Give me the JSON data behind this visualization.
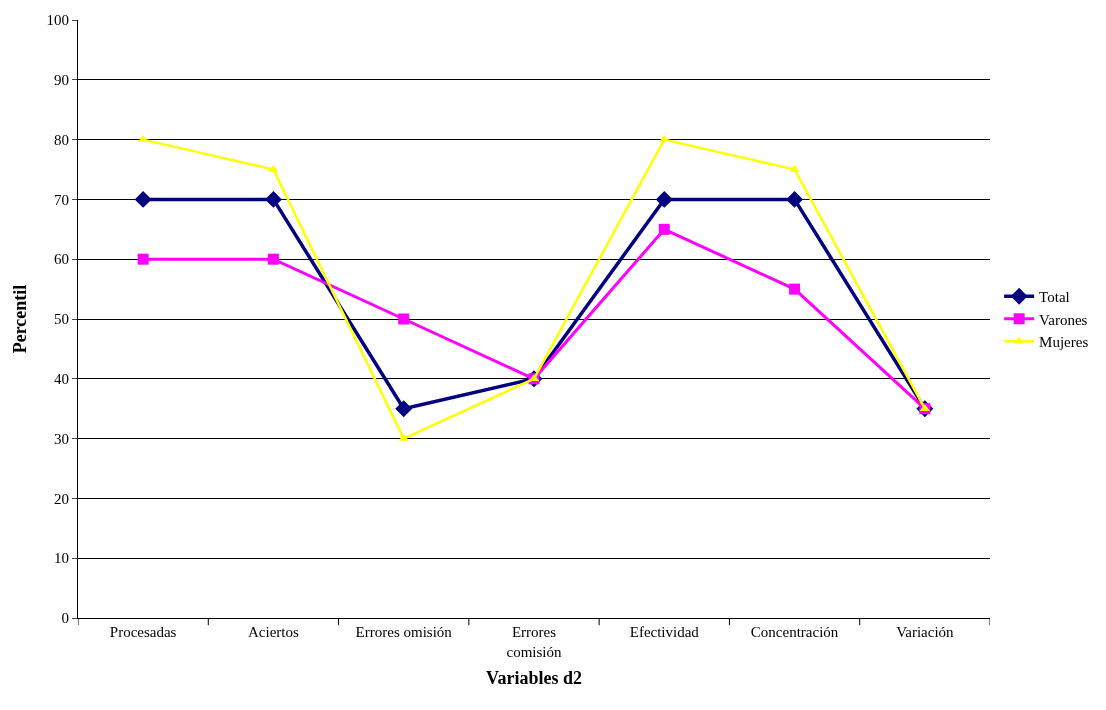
{
  "chart_data": {
    "type": "line",
    "xlabel": "Variables d2",
    "ylabel": "Percentil",
    "categories": [
      "Procesadas",
      "Aciertos",
      "Errores omisión",
      "Errores\ncomisión",
      "Efectividad",
      "Concentración",
      "Variación"
    ],
    "series": [
      {
        "name": "Total",
        "color": "#000080",
        "marker": "diamond",
        "values": [
          70,
          70,
          35,
          40,
          70,
          70,
          35
        ]
      },
      {
        "name": "Varones",
        "color": "#ff00ff",
        "marker": "square",
        "values": [
          60,
          60,
          50,
          40,
          65,
          55,
          35
        ]
      },
      {
        "name": "Mujeres",
        "color": "#ffff00",
        "marker": "triangle",
        "values": [
          80,
          75,
          30,
          40,
          80,
          75,
          35
        ]
      }
    ],
    "ylim": [
      0,
      100
    ],
    "yticks": [
      0,
      10,
      20,
      30,
      40,
      50,
      60,
      70,
      80,
      90,
      100
    ],
    "grid": "y",
    "legend": "right",
    "line_style": "solid"
  }
}
